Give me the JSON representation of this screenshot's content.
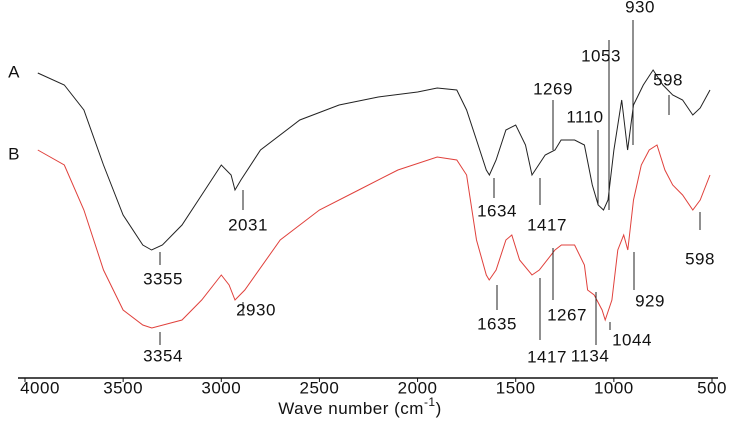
{
  "chart_data": {
    "type": "line",
    "x_label": {
      "base": "Wave number (cm",
      "superscript": "-1",
      "tail": ")"
    },
    "xlim": [
      4000,
      500
    ],
    "xticks": [
      4000,
      3500,
      3000,
      2500,
      2000,
      1500,
      1000,
      500
    ],
    "ylim": [
      0,
      380
    ],
    "series": [
      {
        "name": "A",
        "color": "#222222",
        "x": [
          3935,
          3800,
          3700,
          3600,
          3500,
          3400,
          3355,
          3300,
          3200,
          3100,
          3000,
          2950,
          2930,
          2900,
          2800,
          2600,
          2400,
          2200,
          2000,
          1900,
          1800,
          1750,
          1700,
          1650,
          1634,
          1600,
          1550,
          1500,
          1450,
          1417,
          1400,
          1350,
          1300,
          1269,
          1200,
          1150,
          1110,
          1080,
          1053,
          1030,
          1000,
          960,
          930,
          900,
          850,
          800,
          750,
          700,
          650,
          598,
          560,
          510
        ],
        "values": [
          305,
          293,
          268,
          213,
          163,
          133,
          128,
          133,
          153,
          183,
          213,
          203,
          188,
          198,
          228,
          258,
          273,
          281,
          286,
          290,
          288,
          268,
          238,
          208,
          203,
          218,
          248,
          253,
          233,
          203,
          208,
          223,
          228,
          238,
          238,
          233,
          193,
          173,
          168,
          178,
          228,
          278,
          228,
          273,
          293,
          308,
          293,
          283,
          278,
          263,
          270,
          288
        ],
        "annotations": [
          "3355",
          "2031",
          "1634",
          "1417",
          "1269",
          "1110",
          "1053",
          "930",
          "598"
        ]
      },
      {
        "name": "B",
        "color": "#e0413c",
        "x": [
          3935,
          3800,
          3700,
          3600,
          3500,
          3400,
          3354,
          3200,
          3100,
          3000,
          2960,
          2930,
          2880,
          2700,
          2500,
          2300,
          2100,
          1900,
          1800,
          1750,
          1700,
          1650,
          1635,
          1600,
          1550,
          1520,
          1480,
          1417,
          1380,
          1300,
          1267,
          1200,
          1150,
          1134,
          1100,
          1060,
          1044,
          1010,
          980,
          950,
          929,
          900,
          860,
          820,
          780,
          740,
          700,
          650,
          598,
          560,
          510
        ],
        "values": [
          228,
          213,
          168,
          108,
          68,
          53,
          50,
          58,
          78,
          103,
          93,
          78,
          88,
          138,
          168,
          188,
          208,
          221,
          218,
          203,
          138,
          103,
          98,
          108,
          138,
          143,
          118,
          103,
          108,
          128,
          133,
          133,
          113,
          88,
          83,
          68,
          58,
          78,
          128,
          143,
          128,
          178,
          213,
          228,
          233,
          208,
          193,
          183,
          168,
          178,
          203
        ],
        "annotations": [
          "3354",
          "2930",
          "1635",
          "1417",
          "1267",
          "1134",
          "1044",
          "929",
          "598"
        ]
      }
    ]
  }
}
